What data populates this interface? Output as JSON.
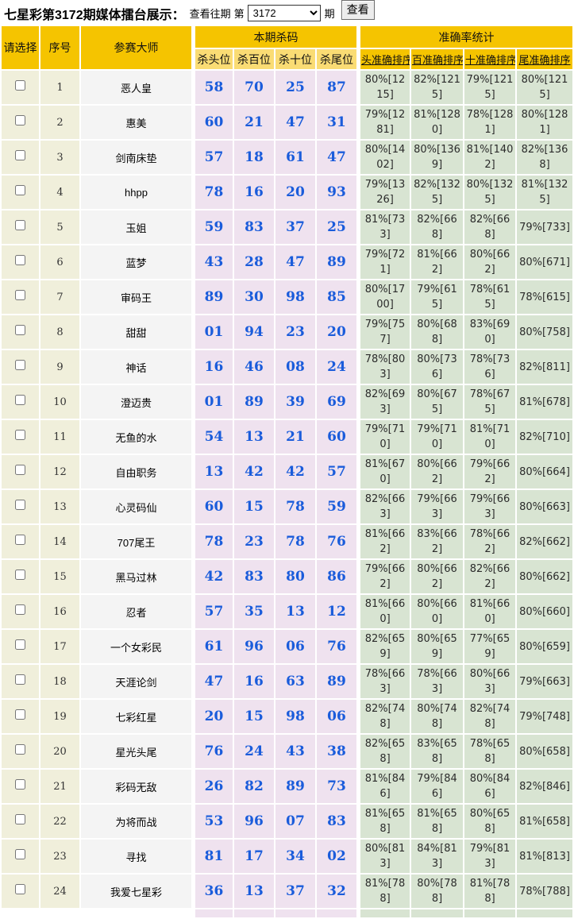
{
  "topbar": {
    "title": "七星彩第3172期媒体擂台展示：",
    "view_past_label": "查看往期",
    "di_label": "第",
    "period_selected": "3172",
    "qi_label": "期",
    "view_button_label": "查看"
  },
  "colors": {
    "header_gold": "#f5c400",
    "kill_subheader_yellow": "#fadc74",
    "row_index_beige": "#f0efdb",
    "master_gray": "#f4f4f4",
    "kill_pink": "#efe2ef",
    "stat_green": "#d8e4d2",
    "kill_number_blue": "#1a5cdb"
  },
  "table": {
    "headers": {
      "select": "请选择",
      "index": "序号",
      "master": "参赛大师",
      "kill_group": "本期杀码",
      "accuracy_group": "准确率统计",
      "kill_cols": [
        "杀头位",
        "杀百位",
        "杀十位",
        "杀尾位"
      ],
      "accuracy_cols": [
        "头准确排序",
        "百准确排序",
        "十准确排序",
        "尾准确排序"
      ]
    },
    "rows": [
      {
        "index": "1",
        "master": "恶人皇",
        "kills": [
          "58",
          "70",
          "25",
          "87"
        ],
        "stats": [
          "80%[1215]",
          "82%[1215]",
          "79%[1215]",
          "80%[1215]"
        ]
      },
      {
        "index": "2",
        "master": "惠美",
        "kills": [
          "60",
          "21",
          "47",
          "31"
        ],
        "stats": [
          "79%[1281]",
          "81%[1280]",
          "78%[1281]",
          "80%[1281]"
        ]
      },
      {
        "index": "3",
        "master": "剑南床垫",
        "kills": [
          "57",
          "18",
          "61",
          "47"
        ],
        "stats": [
          "80%[1402]",
          "80%[1369]",
          "81%[1402]",
          "82%[1368]"
        ]
      },
      {
        "index": "4",
        "master": "hhpp",
        "kills": [
          "78",
          "16",
          "20",
          "93"
        ],
        "stats": [
          "79%[1326]",
          "82%[1325]",
          "80%[1325]",
          "81%[1325]"
        ]
      },
      {
        "index": "5",
        "master": "玉姐",
        "kills": [
          "59",
          "83",
          "37",
          "25"
        ],
        "stats": [
          "81%[733]",
          "82%[668]",
          "82%[668]",
          "79%[733]"
        ]
      },
      {
        "index": "6",
        "master": "蓝梦",
        "kills": [
          "43",
          "28",
          "47",
          "89"
        ],
        "stats": [
          "79%[721]",
          "81%[662]",
          "80%[662]",
          "80%[671]"
        ]
      },
      {
        "index": "7",
        "master": "审码王",
        "kills": [
          "89",
          "30",
          "98",
          "85"
        ],
        "stats": [
          "80%[1700]",
          "79%[615]",
          "78%[615]",
          "78%[615]"
        ]
      },
      {
        "index": "8",
        "master": "甜甜",
        "kills": [
          "01",
          "94",
          "23",
          "20"
        ],
        "stats": [
          "79%[757]",
          "80%[688]",
          "83%[690]",
          "80%[758]"
        ]
      },
      {
        "index": "9",
        "master": "神话",
        "kills": [
          "16",
          "46",
          "08",
          "24"
        ],
        "stats": [
          "78%[803]",
          "80%[736]",
          "78%[736]",
          "82%[811]"
        ]
      },
      {
        "index": "10",
        "master": "澄迈贵",
        "kills": [
          "01",
          "89",
          "39",
          "69"
        ],
        "stats": [
          "82%[693]",
          "80%[675]",
          "78%[675]",
          "81%[678]"
        ]
      },
      {
        "index": "11",
        "master": "无鱼的水",
        "kills": [
          "54",
          "13",
          "21",
          "60"
        ],
        "stats": [
          "79%[710]",
          "79%[710]",
          "81%[710]",
          "82%[710]"
        ]
      },
      {
        "index": "12",
        "master": "自由职务",
        "kills": [
          "13",
          "42",
          "42",
          "57"
        ],
        "stats": [
          "81%[670]",
          "80%[662]",
          "79%[662]",
          "80%[664]"
        ]
      },
      {
        "index": "13",
        "master": "心灵码仙",
        "kills": [
          "60",
          "15",
          "78",
          "59"
        ],
        "stats": [
          "82%[663]",
          "79%[663]",
          "79%[663]",
          "80%[663]"
        ]
      },
      {
        "index": "14",
        "master": "707尾王",
        "kills": [
          "78",
          "23",
          "78",
          "76"
        ],
        "stats": [
          "81%[662]",
          "83%[662]",
          "78%[662]",
          "82%[662]"
        ]
      },
      {
        "index": "15",
        "master": "黑马过林",
        "kills": [
          "42",
          "83",
          "80",
          "86"
        ],
        "stats": [
          "79%[662]",
          "80%[662]",
          "82%[662]",
          "80%[662]"
        ]
      },
      {
        "index": "16",
        "master": "忍者",
        "kills": [
          "57",
          "35",
          "13",
          "12"
        ],
        "stats": [
          "81%[660]",
          "80%[660]",
          "81%[660]",
          "80%[660]"
        ]
      },
      {
        "index": "17",
        "master": "一个女彩民",
        "kills": [
          "61",
          "96",
          "06",
          "76"
        ],
        "stats": [
          "82%[659]",
          "80%[659]",
          "77%[659]",
          "80%[659]"
        ]
      },
      {
        "index": "18",
        "master": "天涯论剑",
        "kills": [
          "47",
          "16",
          "63",
          "89"
        ],
        "stats": [
          "78%[663]",
          "78%[663]",
          "80%[663]",
          "79%[663]"
        ]
      },
      {
        "index": "19",
        "master": "七彩红星",
        "kills": [
          "20",
          "15",
          "98",
          "06"
        ],
        "stats": [
          "82%[748]",
          "80%[748]",
          "82%[748]",
          "79%[748]"
        ]
      },
      {
        "index": "20",
        "master": "星光头尾",
        "kills": [
          "76",
          "24",
          "43",
          "38"
        ],
        "stats": [
          "82%[658]",
          "83%[658]",
          "78%[658]",
          "80%[658]"
        ]
      },
      {
        "index": "21",
        "master": "彩码无敌",
        "kills": [
          "26",
          "82",
          "89",
          "73"
        ],
        "stats": [
          "81%[846]",
          "79%[846]",
          "80%[846]",
          "82%[846]"
        ]
      },
      {
        "index": "22",
        "master": "为将而战",
        "kills": [
          "53",
          "96",
          "07",
          "83"
        ],
        "stats": [
          "81%[658]",
          "81%[658]",
          "80%[658]",
          "81%[658]"
        ]
      },
      {
        "index": "23",
        "master": "寻找",
        "kills": [
          "81",
          "17",
          "34",
          "02"
        ],
        "stats": [
          "80%[813]",
          "84%[813]",
          "79%[813]",
          "81%[813]"
        ]
      },
      {
        "index": "24",
        "master": "我爱七星彩",
        "kills": [
          "36",
          "13",
          "37",
          "32"
        ],
        "stats": [
          "81%[788]",
          "80%[788]",
          "81%[788]",
          "78%[788]"
        ]
      }
    ]
  }
}
